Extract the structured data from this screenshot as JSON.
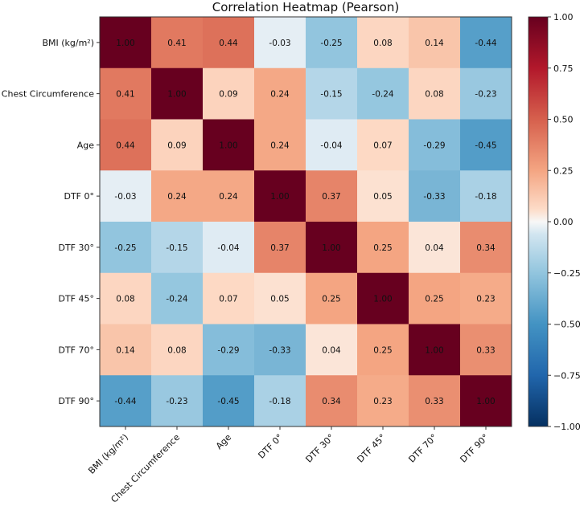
{
  "chart_data": {
    "type": "heatmap",
    "title": "Correlation Heatmap (Pearson)",
    "labels": [
      "BMI (kg/m²)",
      "Chest Circumference",
      "Age",
      "DTF 0°",
      "DTF 30°",
      "DTF 45°",
      "DTF 70°",
      "DTF 90°"
    ],
    "values": [
      [
        1.0,
        0.41,
        0.44,
        -0.03,
        -0.25,
        0.08,
        0.14,
        -0.44
      ],
      [
        0.41,
        1.0,
        0.09,
        0.24,
        -0.15,
        -0.24,
        0.08,
        -0.23
      ],
      [
        0.44,
        0.09,
        1.0,
        0.24,
        -0.04,
        0.07,
        -0.29,
        -0.45
      ],
      [
        -0.03,
        0.24,
        0.24,
        1.0,
        0.37,
        0.05,
        -0.33,
        -0.18
      ],
      [
        -0.25,
        -0.15,
        -0.04,
        0.37,
        1.0,
        0.25,
        0.04,
        0.34
      ],
      [
        0.08,
        -0.24,
        0.07,
        0.05,
        0.25,
        1.0,
        0.25,
        0.23
      ],
      [
        0.14,
        0.08,
        -0.29,
        -0.33,
        0.04,
        0.25,
        1.0,
        0.33
      ],
      [
        -0.44,
        -0.23,
        -0.45,
        -0.18,
        0.34,
        0.23,
        0.33,
        1.0
      ]
    ],
    "colormap": "RdBu_r",
    "vmin": -1,
    "vmax": 1,
    "colorbar_ticks": [
      "1.00",
      "0.75",
      "0.50",
      "0.25",
      "0.00",
      "−0.25",
      "−0.50",
      "−0.75",
      "−1.00"
    ],
    "colorbar_tick_values": [
      1,
      0.75,
      0.5,
      0.25,
      0,
      -0.25,
      -0.5,
      -0.75,
      -1
    ]
  }
}
